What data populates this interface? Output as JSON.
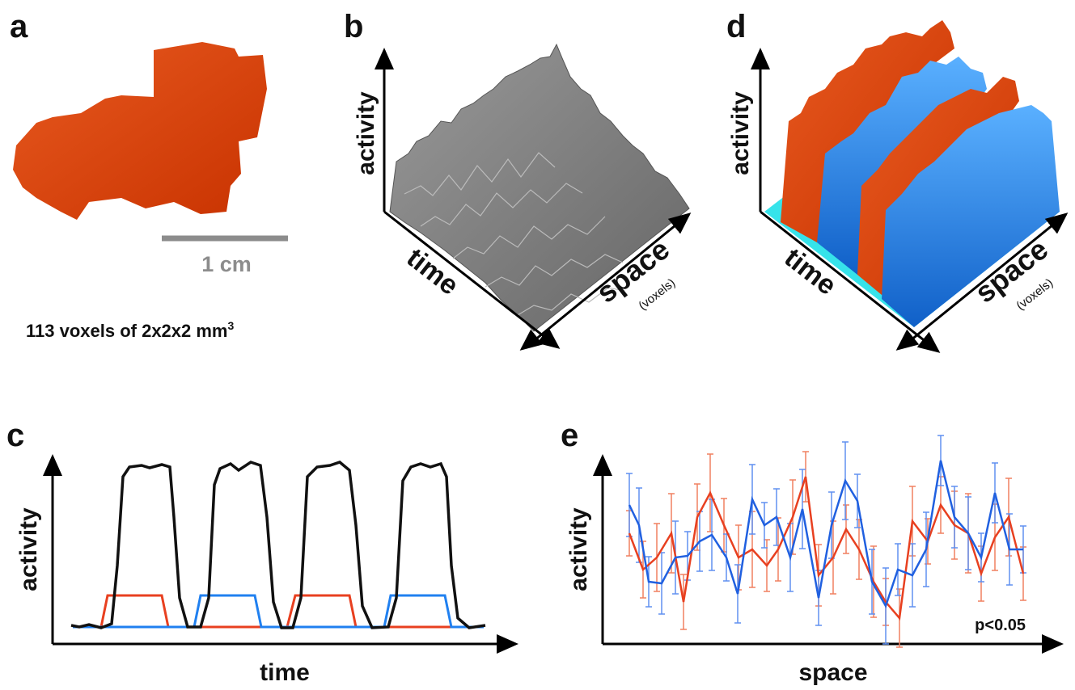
{
  "panels": [
    {
      "label": "a",
      "scale_bar": "1 cm",
      "caption": "113 voxels of 2x2x2 mm",
      "caption_superscript": "3"
    },
    {
      "label": "b",
      "y_label": "activity",
      "x_label": "time",
      "z_label": "space",
      "z_sublabel": "(voxels)"
    },
    {
      "label": "c",
      "y_label": "activity",
      "x_label": "time"
    },
    {
      "label": "d",
      "y_label": "activity",
      "x_label": "time",
      "z_label": "space",
      "z_sublabel": "(voxels)"
    },
    {
      "label": "e",
      "y_label": "activity",
      "x_label": "space",
      "annotation": "p<0.05"
    }
  ]
}
